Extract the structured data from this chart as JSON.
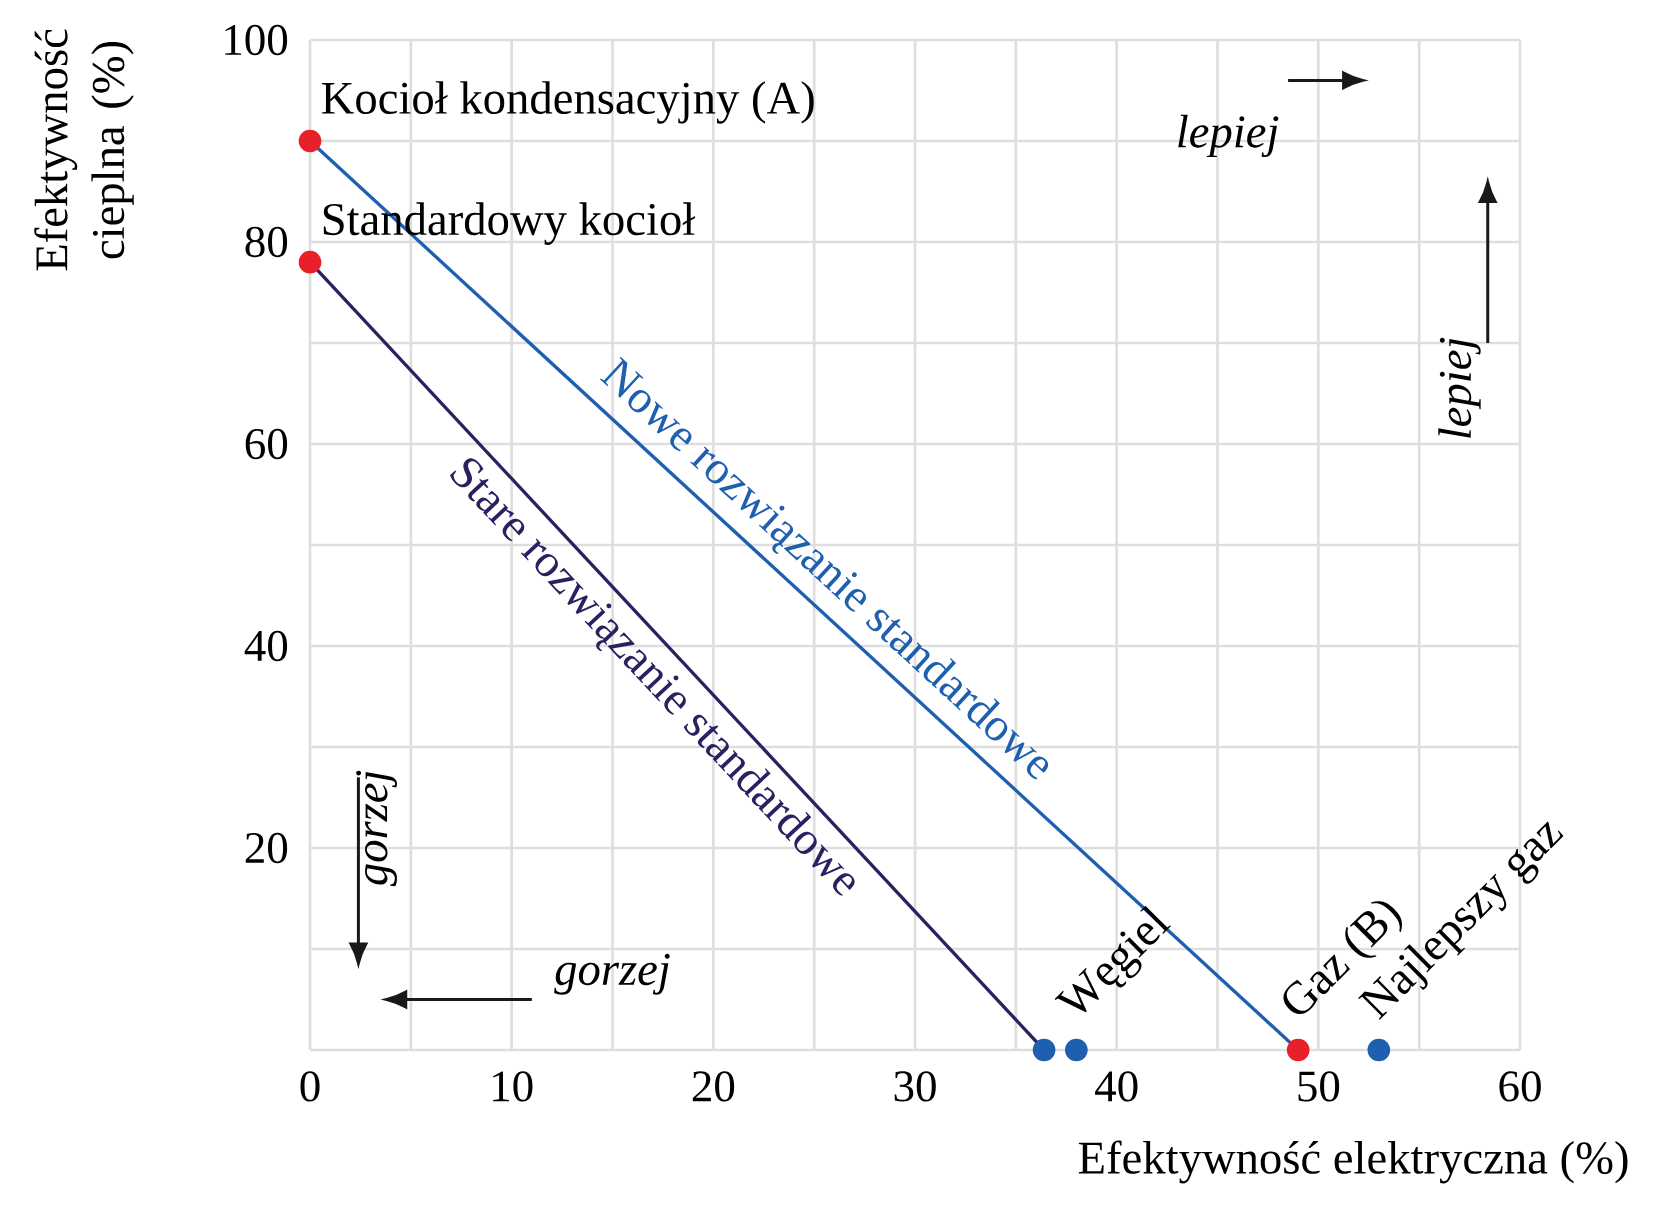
{
  "chart_data": {
    "type": "scatter",
    "xlabel": "Efektywność elektryczna (%)",
    "ylabel": "Efektywność cieplna (%)",
    "xlim": [
      0,
      60
    ],
    "ylim": [
      0,
      100
    ],
    "xticks": [
      0,
      10,
      20,
      30,
      40,
      50,
      60
    ],
    "yticks": [
      {
        "value": 0,
        "label": null
      },
      20,
      40,
      60,
      80,
      100
    ],
    "grid": true,
    "marker": "circle",
    "series": [
      {
        "name": "Nowe rozwiązanie standardowe",
        "type": "line",
        "marker": "none",
        "color": "#1f5fb0",
        "x": [
          0,
          49
        ],
        "values": [
          90,
          0
        ]
      },
      {
        "name": "Stare rozwiązanie standardowe",
        "type": "line",
        "marker": "none",
        "color": "#2b2060",
        "x": [
          0,
          36.4
        ],
        "values": [
          78,
          0
        ]
      },
      {
        "type": "scatter",
        "color": "#e8202a",
        "x": [
          0,
          0,
          49
        ],
        "values": [
          90,
          78,
          0
        ]
      },
      {
        "type": "scatter",
        "color": "#1f5fb0",
        "x": [
          36.4,
          38
        ],
        "values": [
          0,
          0
        ]
      },
      {
        "type": "scatter",
        "color": "#1f5fb0",
        "x": [
          53
        ],
        "values": [
          0
        ]
      }
    ],
    "annotations": [
      {
        "text": "Kocioł kondensacyjny (A)",
        "x": 0,
        "y": 90
      },
      {
        "text": "Standardowy kocioł",
        "x": 0,
        "y": 78
      },
      {
        "text": "Węgiel",
        "x": 38,
        "y": 0
      },
      {
        "text": "Gaz (B)",
        "x": 49,
        "y": 0
      },
      {
        "text": "Najlepszy gaz",
        "x": 53,
        "y": 0
      },
      "lepiej",
      "lepiej",
      "gorzej",
      "gorzej"
    ]
  }
}
